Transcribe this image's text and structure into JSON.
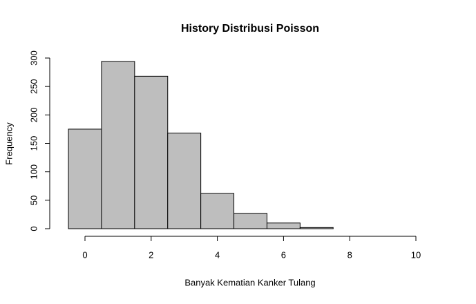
{
  "chart_data": {
    "type": "histogram",
    "title": "History Distribusi Poisson",
    "x_label": "Banyak Kematian Kanker Tulang",
    "y_label": "Frequency",
    "bins": [
      -0.5,
      0.5,
      1.5,
      2.5,
      3.5,
      4.5,
      5.5,
      6.5,
      7.5,
      8.5,
      9.5,
      10.5
    ],
    "values": [
      175,
      294,
      268,
      168,
      62,
      27,
      10,
      2,
      0,
      0,
      0
    ],
    "color": "#bebebe",
    "xlim": [
      0,
      10
    ],
    "xticks": [
      0,
      2,
      4,
      6,
      8,
      10
    ],
    "ylim": [
      0,
      300
    ],
    "yticks": [
      0,
      50,
      100,
      150,
      200,
      250,
      300
    ]
  }
}
